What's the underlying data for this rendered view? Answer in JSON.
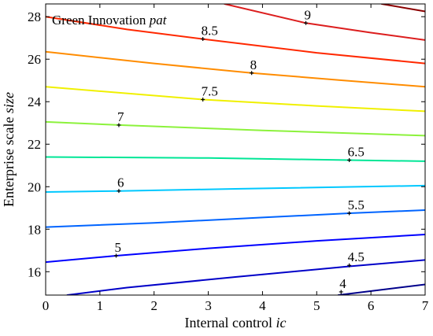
{
  "chart_data": {
    "type": "contour",
    "title": "",
    "legend": {
      "text": "Green Innovation",
      "italic": "pat"
    },
    "xlabel": {
      "text": "Internal control",
      "italic": "ic"
    },
    "ylabel": {
      "text": "Enterprise scale",
      "italic": "size"
    },
    "xlim": [
      0,
      7
    ],
    "ylim": [
      14.9,
      28.6
    ],
    "xticks": [
      0,
      1,
      2,
      3,
      4,
      5,
      6,
      7
    ],
    "yticks": [
      16,
      18,
      20,
      22,
      24,
      26,
      28
    ],
    "grid": false,
    "contours": [
      {
        "level": 4,
        "label": "4",
        "color": "#00008b",
        "points": [
          [
            5.4,
            14.9
          ],
          [
            7.0,
            15.4
          ]
        ],
        "label_at": [
          5.45,
          15.05
        ]
      },
      {
        "level": 4.5,
        "label": "4.5",
        "color": "#0000c8",
        "points": [
          [
            0.4,
            14.9
          ],
          [
            1.5,
            15.25
          ],
          [
            3.5,
            15.75
          ],
          [
            5.6,
            16.25
          ],
          [
            7.0,
            16.55
          ]
        ],
        "label_at": [
          5.6,
          16.3
        ]
      },
      {
        "level": 5,
        "label": "5",
        "color": "#0000ff",
        "points": [
          [
            0.0,
            16.45
          ],
          [
            1.3,
            16.75
          ],
          [
            3.0,
            17.1
          ],
          [
            5.0,
            17.45
          ],
          [
            7.0,
            17.75
          ]
        ],
        "label_at": [
          1.3,
          16.75
        ]
      },
      {
        "level": 5.5,
        "label": "5.5",
        "color": "#0064ff",
        "points": [
          [
            0.0,
            18.1
          ],
          [
            2.0,
            18.3
          ],
          [
            4.0,
            18.55
          ],
          [
            5.6,
            18.75
          ],
          [
            7.0,
            18.9
          ]
        ],
        "label_at": [
          5.6,
          18.75
        ]
      },
      {
        "level": 6,
        "label": "6",
        "color": "#00c8ff",
        "points": [
          [
            0.0,
            19.75
          ],
          [
            1.35,
            19.8
          ],
          [
            3.5,
            19.9
          ],
          [
            7.0,
            20.05
          ]
        ],
        "label_at": [
          1.35,
          19.8
        ]
      },
      {
        "level": 6.5,
        "label": "6.5",
        "color": "#00e696",
        "points": [
          [
            0.0,
            21.4
          ],
          [
            3.0,
            21.35
          ],
          [
            5.6,
            21.25
          ],
          [
            7.0,
            21.2
          ]
        ],
        "label_at": [
          5.6,
          21.25
        ]
      },
      {
        "level": 7,
        "label": "7",
        "color": "#8cf23c",
        "points": [
          [
            0.0,
            23.05
          ],
          [
            1.35,
            22.9
          ],
          [
            4.0,
            22.65
          ],
          [
            7.0,
            22.4
          ]
        ],
        "label_at": [
          1.35,
          22.9
        ]
      },
      {
        "level": 7.5,
        "label": "7.5",
        "color": "#f0f000",
        "points": [
          [
            0.0,
            24.7
          ],
          [
            2.9,
            24.1
          ],
          [
            5.0,
            23.8
          ],
          [
            7.0,
            23.55
          ]
        ],
        "label_at": [
          2.9,
          24.1
        ]
      },
      {
        "level": 8,
        "label": "8",
        "color": "#ff8c00",
        "points": [
          [
            0.0,
            26.35
          ],
          [
            2.0,
            25.8
          ],
          [
            3.8,
            25.35
          ],
          [
            5.5,
            25.0
          ],
          [
            7.0,
            24.7
          ]
        ],
        "label_at": [
          3.8,
          25.35
        ]
      },
      {
        "level": 8.5,
        "label": "8.5",
        "color": "#ff2800",
        "points": [
          [
            0.0,
            28.0
          ],
          [
            1.5,
            27.4
          ],
          [
            2.9,
            26.95
          ],
          [
            5.0,
            26.3
          ],
          [
            7.0,
            25.8
          ]
        ],
        "label_at": [
          2.9,
          26.95
        ]
      },
      {
        "level": 9,
        "label": "9",
        "color": "#dc1e1e",
        "points": [
          [
            3.3,
            28.6
          ],
          [
            4.8,
            27.7
          ],
          [
            6.0,
            27.25
          ],
          [
            7.0,
            26.9
          ]
        ],
        "label_at": [
          4.8,
          27.7
        ]
      },
      {
        "level": 9.5,
        "label": "",
        "color": "#8b0000",
        "points": [
          [
            6.2,
            28.6
          ],
          [
            7.0,
            28.25
          ]
        ],
        "label_at": null
      }
    ]
  }
}
